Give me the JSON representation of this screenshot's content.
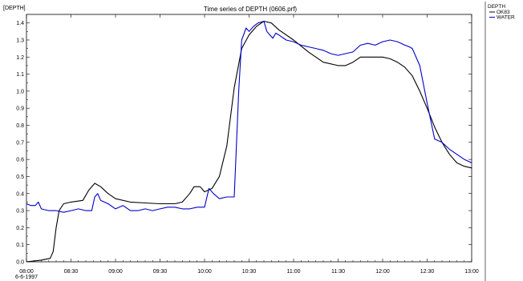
{
  "chart_data": {
    "type": "line",
    "title": "Time series of DEPTH (0606.prf)",
    "ylabel": "[DEPTH]",
    "xlabel": "",
    "date_label": "6-6-1997",
    "legend_title": "DEPTH",
    "legend_position": "top-right (outside plot)",
    "grid": false,
    "ylim": [
      0.0,
      1.45
    ],
    "xlim": [
      "08:00",
      "13:00"
    ],
    "x_ticks": [
      "08:00",
      "08:30",
      "09:00",
      "09:30",
      "10:00",
      "10:30",
      "11:00",
      "11:30",
      "12:00",
      "12:30",
      "13:00"
    ],
    "y_ticks": [
      "0.0",
      "0.1",
      "0.2",
      "0.3",
      "0.4",
      "0.5",
      "0.6",
      "0.7",
      "0.8",
      "0.9",
      "1.0",
      "1.1",
      "1.2",
      "1.3",
      "1.4"
    ],
    "series": [
      {
        "name": "OK83",
        "color": "#000000",
        "x": [
          "08:00",
          "08:10",
          "08:16",
          "08:18",
          "08:20",
          "08:22",
          "08:25",
          "08:30",
          "08:38",
          "08:42",
          "08:46",
          "08:50",
          "08:55",
          "09:00",
          "09:10",
          "09:20",
          "09:30",
          "09:40",
          "09:45",
          "09:50",
          "09:53",
          "09:57",
          "10:00",
          "10:05",
          "10:10",
          "10:15",
          "10:20",
          "10:25",
          "10:30",
          "10:35",
          "10:40",
          "10:45",
          "10:50",
          "11:00",
          "11:10",
          "11:20",
          "11:30",
          "11:35",
          "11:40",
          "11:45",
          "11:50",
          "11:55",
          "12:00",
          "12:05",
          "12:10",
          "12:15",
          "12:20",
          "12:25",
          "12:30",
          "12:35",
          "12:40",
          "12:45",
          "12:50",
          "12:55",
          "13:00"
        ],
        "values": [
          0.0,
          0.01,
          0.02,
          0.06,
          0.2,
          0.3,
          0.34,
          0.35,
          0.36,
          0.42,
          0.46,
          0.44,
          0.4,
          0.37,
          0.35,
          0.345,
          0.34,
          0.34,
          0.35,
          0.4,
          0.44,
          0.44,
          0.41,
          0.43,
          0.5,
          0.68,
          1.02,
          1.25,
          1.33,
          1.38,
          1.41,
          1.4,
          1.36,
          1.3,
          1.23,
          1.17,
          1.15,
          1.15,
          1.17,
          1.2,
          1.2,
          1.2,
          1.2,
          1.19,
          1.17,
          1.14,
          1.09,
          1.0,
          0.9,
          0.79,
          0.7,
          0.63,
          0.58,
          0.56,
          0.55
        ]
      },
      {
        "name": "WATER",
        "color": "#0000cc",
        "x": [
          "08:00",
          "08:03",
          "08:06",
          "08:08",
          "08:10",
          "08:15",
          "08:20",
          "08:25",
          "08:30",
          "08:35",
          "08:40",
          "08:44",
          "08:46",
          "08:48",
          "08:50",
          "08:55",
          "09:00",
          "09:05",
          "09:10",
          "09:15",
          "09:20",
          "09:25",
          "09:30",
          "09:35",
          "09:40",
          "09:45",
          "09:50",
          "09:55",
          "10:00",
          "10:03",
          "10:06",
          "10:10",
          "10:15",
          "10:20",
          "10:23",
          "10:25",
          "10:28",
          "10:30",
          "10:33",
          "10:36",
          "10:40",
          "10:42",
          "10:44",
          "10:46",
          "10:48",
          "10:50",
          "10:55",
          "11:00",
          "11:05",
          "11:10",
          "11:15",
          "11:20",
          "11:25",
          "11:30",
          "11:35",
          "11:40",
          "11:45",
          "11:50",
          "11:55",
          "12:00",
          "12:05",
          "12:10",
          "12:15",
          "12:18",
          "12:20",
          "12:25",
          "12:30",
          "12:35",
          "12:40",
          "12:45",
          "12:50",
          "12:55",
          "13:00"
        ],
        "values": [
          0.34,
          0.33,
          0.33,
          0.35,
          0.31,
          0.3,
          0.3,
          0.29,
          0.3,
          0.31,
          0.3,
          0.3,
          0.38,
          0.4,
          0.36,
          0.34,
          0.31,
          0.33,
          0.3,
          0.3,
          0.31,
          0.3,
          0.31,
          0.32,
          0.32,
          0.31,
          0.31,
          0.32,
          0.32,
          0.43,
          0.4,
          0.37,
          0.38,
          0.38,
          1.0,
          1.3,
          1.37,
          1.35,
          1.38,
          1.4,
          1.41,
          1.35,
          1.33,
          1.31,
          1.34,
          1.33,
          1.3,
          1.29,
          1.27,
          1.26,
          1.25,
          1.24,
          1.22,
          1.21,
          1.22,
          1.23,
          1.27,
          1.28,
          1.27,
          1.29,
          1.3,
          1.29,
          1.27,
          1.26,
          1.25,
          1.15,
          0.93,
          0.72,
          0.7,
          0.66,
          0.63,
          0.6,
          0.58
        ]
      }
    ]
  }
}
